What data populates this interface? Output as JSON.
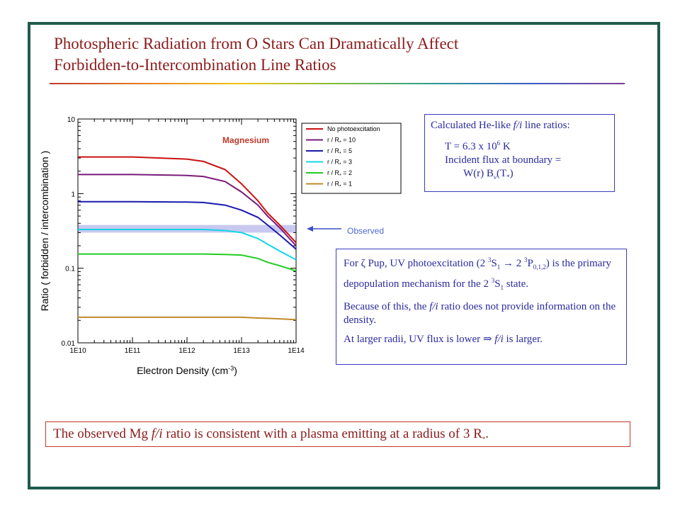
{
  "slide": {
    "title_line1": "Photospheric Radiation from O Stars Can Dramatically Affect",
    "title_line2": "Forbidden-to-Intercombination Line Ratios"
  },
  "chart_data": {
    "type": "line",
    "xlabel": "Electron Density (cm",
    "xlabel_sup": "-3",
    "xlabel_end": ")",
    "ylabel": "Ratio ( forbidden / intercombination )",
    "xscale": "log",
    "yscale": "log",
    "xlim": [
      10000000000.0,
      100000000000000.0
    ],
    "ylim": [
      0.01,
      10
    ],
    "x_ticks": [
      "1E10",
      "1E11",
      "1E12",
      "1E13",
      "1E14"
    ],
    "y_ticks": [
      "0.01",
      "0.1",
      "1",
      "10"
    ],
    "annotation": "Magnesium",
    "legend_position": "right",
    "observed_band": {
      "label": "Observed",
      "ymin": 0.3,
      "ymax": 0.38,
      "color": "#c8c8f0"
    },
    "x": [
      10000000000.0,
      100000000000.0,
      1000000000000.0,
      2000000000000.0,
      5000000000000.0,
      10000000000000.0,
      20000000000000.0,
      30000000000000.0,
      50000000000000.0,
      100000000000000.0
    ],
    "series": [
      {
        "name": "No photoexcitation",
        "legend_main": "No photoexcitation",
        "legend_sub": "",
        "legend_tail": "",
        "color": "#cc1111",
        "values": [
          3.1,
          3.1,
          2.9,
          2.7,
          2.1,
          1.35,
          0.8,
          0.55,
          0.38,
          0.22
        ]
      },
      {
        "name": "r / R* = 10",
        "legend_main": "r / R",
        "legend_sub": "*",
        "legend_tail": " = 10",
        "color": "#7a1a7a",
        "values": [
          1.8,
          1.8,
          1.75,
          1.7,
          1.45,
          1.05,
          0.7,
          0.5,
          0.35,
          0.2
        ]
      },
      {
        "name": "r / R* = 5",
        "legend_main": "r / R",
        "legend_sub": "*",
        "legend_tail": " = 5",
        "color": "#1a1ab0",
        "values": [
          0.78,
          0.78,
          0.77,
          0.76,
          0.7,
          0.6,
          0.48,
          0.38,
          0.28,
          0.18
        ]
      },
      {
        "name": "r / R* = 3",
        "legend_main": "r / R",
        "legend_sub": "*",
        "legend_tail": " = 3",
        "color": "#11d6e6",
        "values": [
          0.33,
          0.33,
          0.33,
          0.33,
          0.32,
          0.3,
          0.25,
          0.21,
          0.17,
          0.13
        ]
      },
      {
        "name": "r / R* = 2",
        "legend_main": "r / R",
        "legend_sub": "*",
        "legend_tail": " = 2",
        "color": "#22cc22",
        "values": [
          0.155,
          0.155,
          0.155,
          0.155,
          0.153,
          0.15,
          0.135,
          0.12,
          0.108,
          0.092
        ]
      },
      {
        "name": "r / R* = 1",
        "legend_main": "r / R",
        "legend_sub": "*",
        "legend_tail": " = 1",
        "color": "#c08a2a",
        "values": [
          0.022,
          0.022,
          0.022,
          0.022,
          0.022,
          0.022,
          0.0215,
          0.0213,
          0.021,
          0.0205
        ]
      }
    ]
  },
  "box1": {
    "heading_a": "Calculated He-like ",
    "heading_fi": "f/i",
    "heading_b": " line ratios:",
    "temp_a": "T = 6.3 x 10",
    "temp_exp": "6",
    "temp_b": " K",
    "flux": "Incident flux at boundary =",
    "formula_a": "W(r)  B",
    "formula_sub": "ν",
    "formula_b": "(T",
    "formula_sub2": "*",
    "formula_c": ")"
  },
  "box2": {
    "p1_a": "For ζ Pup, UV photoexcitation (2 ",
    "p1_sup1": "3",
    "p1_b": "S",
    "p1_sub1": "1",
    "p1_c": " → 2 ",
    "p1_sup2": "3",
    "p1_d": "P",
    "p1_sub2": "0,1,2",
    "p1_e": ") is the primary depopulation mechanism for the 2 ",
    "p1_sup3": "3",
    "p1_f": "S",
    "p1_sub3": "1",
    "p1_g": " state.",
    "p2_a": "Because of this, the ",
    "p2_fi": "f/i",
    "p2_b": " ratio does not provide information on the density.",
    "p3_a": "At larger radii,  UV flux is lower  ⇒  ",
    "p3_fi": "f/i",
    "p3_b": " is larger."
  },
  "box3": {
    "a": "The observed Mg ",
    "fi": "f/i",
    "b": " ratio is consistent with a plasma emitting at a radius of 3 R",
    "sub": "*",
    "c": "."
  }
}
